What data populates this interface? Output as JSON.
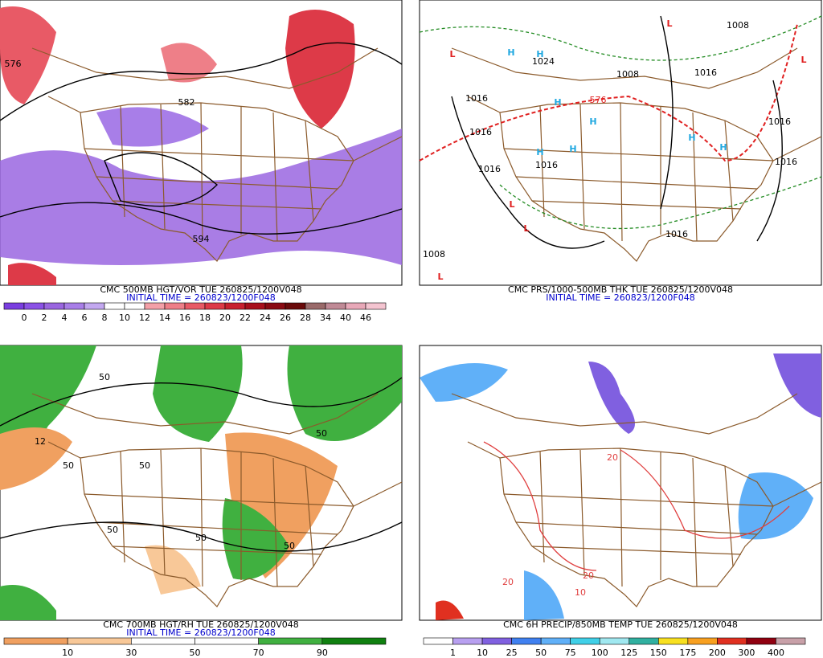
{
  "panels": [
    {
      "title": "CMC 500MB HGT/VOR TUE 260825/1200V048",
      "initial_time": "INITIAL TIME = 260823/1200F048",
      "colorbar": {
        "labels": [
          0,
          2,
          4,
          6,
          8,
          10,
          12,
          14,
          16,
          18,
          20,
          22,
          24,
          26,
          28,
          34,
          40,
          46
        ],
        "colors": [
          "#7a3ee0",
          "#8b52e6",
          "#9a66e0",
          "#a87ee8",
          "#c3a8f0",
          "#ffffff",
          "#ffffff",
          "#f4a0a8",
          "#ee7f88",
          "#e85a66",
          "#dd3a48",
          "#c8202f",
          "#a8101c",
          "#8a0a12",
          "#6a0a0a",
          "#9a6a6a",
          "#c08a96",
          "#e8a8b8",
          "#f4c4d0"
        ]
      },
      "map_labels": [
        "576",
        "582",
        "594"
      ]
    },
    {
      "title": "CMC PRS/1000-500MB THK TUE 260825/1200V048",
      "initial_time": "INITIAL TIME = 260823/1200F048",
      "map_labels": [
        "L",
        "L",
        "L",
        "L",
        "L",
        "L",
        "H",
        "H",
        "H",
        "H",
        "H",
        "H",
        "H",
        "H",
        "1016",
        "1016",
        "1016",
        "1016",
        "1016",
        "1016",
        "1016",
        "1016",
        "1008",
        "1008",
        "1008",
        "1024",
        "576"
      ]
    },
    {
      "title": "CMC 700MB HGT/RH TUE 260825/1200V048",
      "initial_time": "INITIAL TIME = 260823/1200F048",
      "colorbar": {
        "labels": [
          10,
          30,
          50,
          70,
          90
        ],
        "colors": [
          "#f0a060",
          "#f8c898",
          "#ffffff",
          "#ffffff",
          "#40b040",
          "#108010"
        ]
      },
      "map_labels": [
        "50",
        "50",
        "50",
        "50",
        "50",
        "50",
        "50",
        "12"
      ]
    },
    {
      "title": "CMC 6H PRECIP/850MB TEMP TUE 260825/1200V048",
      "colorbar": {
        "labels": [
          1,
          10,
          25,
          50,
          75,
          100,
          125,
          150,
          175,
          200,
          300,
          400
        ],
        "colors": [
          "#ffffff",
          "#b8a0f0",
          "#8060e0",
          "#4080f0",
          "#60b0f8",
          "#40d0e8",
          "#a0e8f0",
          "#30b0a0",
          "#f8e020",
          "#f8a020",
          "#e03020",
          "#900010",
          "#c8a0a8"
        ]
      },
      "map_labels": [
        "20",
        "20",
        "20",
        "10"
      ]
    }
  ]
}
